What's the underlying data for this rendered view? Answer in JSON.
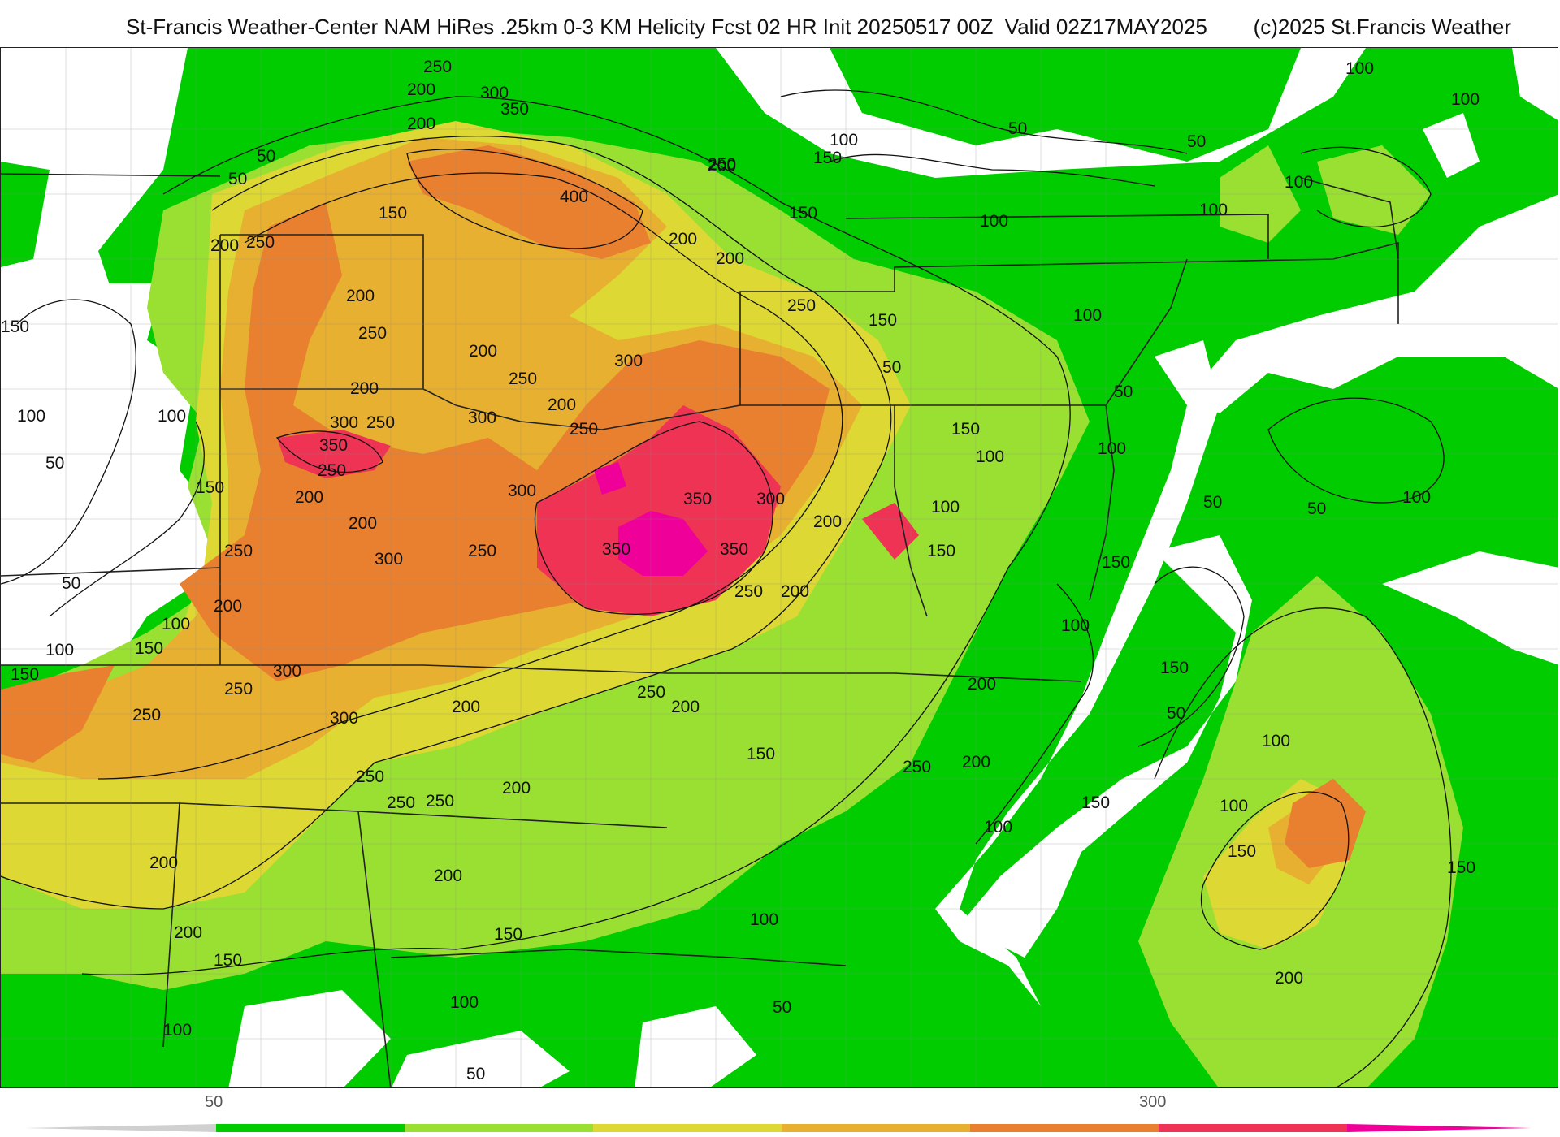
{
  "header": {
    "title": "St-Francis Weather-Center NAM HiRes .25km 0-3 KM Helicity Fcst 02 HR Init 20250517 00Z  Valid 02Z17MAY2025",
    "copyright": "(c)2025 St.Francis Weather"
  },
  "map": {
    "variable": "0-3 KM Helicity",
    "colors": {
      "band_50": "#00cc00",
      "band_100": "#33dd00",
      "band_150": "#99e033",
      "band_200": "#ddd833",
      "band_250": "#e8b030",
      "band_300": "#e88030",
      "band_350": "#ee3355",
      "band_400": "#ee0099",
      "land_white": "#ffffff",
      "borders": "#222222",
      "counties": "#999999",
      "contours": "#111111"
    },
    "contour_labels": [
      "50",
      "100",
      "150",
      "200",
      "250",
      "300",
      "350",
      "400"
    ]
  },
  "legend": {
    "tick_labels": [
      "50",
      "300"
    ],
    "colors": [
      "#00cc00",
      "#99e033",
      "#ddd833",
      "#e8b030",
      "#e88030",
      "#ee3355",
      "#ee0099"
    ]
  }
}
